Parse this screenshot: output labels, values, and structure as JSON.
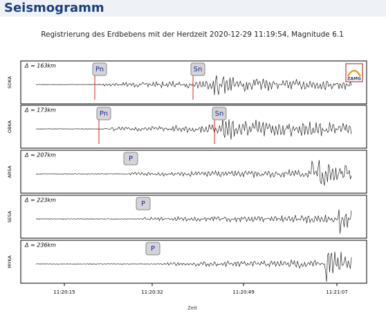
{
  "header": {
    "title": "Seismogramm"
  },
  "chart_data": {
    "type": "seismogram",
    "title": "Registrierung des Erdbebens mit der Herdzeit 2020-12-29 11:19:54, Magnitude 6.1",
    "logo": "ZAMG",
    "panels": [
      {
        "station": "SOKA",
        "distance": "Δ = 163km",
        "phases": [
          "Pn",
          "Sn"
        ]
      },
      {
        "station": "OBKA",
        "distance": "Δ = 173km",
        "phases": [
          "Pn",
          "Sn"
        ]
      },
      {
        "station": "ARSA",
        "distance": "Δ = 207km",
        "phases": [
          "P"
        ]
      },
      {
        "station": "SESA",
        "distance": "Δ = 223km",
        "phases": [
          "P"
        ]
      },
      {
        "station": "MYKA",
        "distance": "Δ = 236km",
        "phases": [
          "P"
        ]
      }
    ],
    "x_tick_labels": [
      "11:20:15",
      "11:20:32",
      "11:20:49",
      "11:21:07"
    ],
    "xlabel": "Zeit"
  }
}
